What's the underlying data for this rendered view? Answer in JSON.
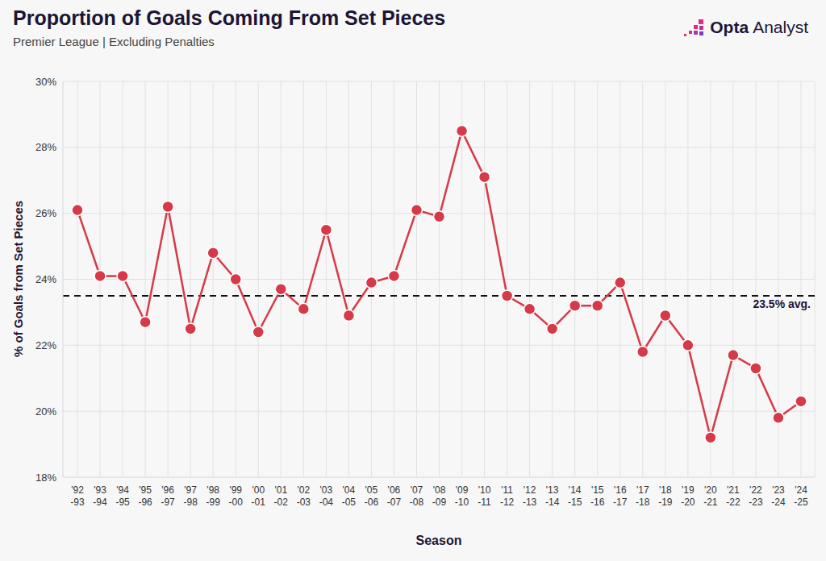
{
  "chart_data": {
    "type": "line",
    "title": "Proportion of Goals Coming From Set Pieces",
    "subtitle": "Premier League | Excluding Penalties",
    "source": "Opta Analyst",
    "x_label": "Season",
    "y_label": "% of Goals from Set Pieces",
    "categories": [
      "'92-93",
      "'93-94",
      "'94-95",
      "'95-96",
      "'96-97",
      "'97-98",
      "'98-99",
      "'99-00",
      "'00-01",
      "'01-02",
      "'02-03",
      "'03-04",
      "'04-05",
      "'05-06",
      "'06-07",
      "'07-08",
      "'08-09",
      "'09-10",
      "'10-11",
      "'11-12",
      "'12-13",
      "'13-14",
      "'14-15",
      "'15-16",
      "'16-17",
      "'17-18",
      "'18-19",
      "'19-20",
      "'20-21",
      "'21-22",
      "'22-23",
      "'23-24",
      "'24-25"
    ],
    "values": [
      26.1,
      24.1,
      24.1,
      22.7,
      26.2,
      22.5,
      24.8,
      24.0,
      22.4,
      23.7,
      23.1,
      25.5,
      22.9,
      23.9,
      24.1,
      26.1,
      25.9,
      28.5,
      27.1,
      23.5,
      23.1,
      22.5,
      23.2,
      23.2,
      23.9,
      21.8,
      22.9,
      22.0,
      19.2,
      21.7,
      21.3,
      19.8,
      20.3
    ],
    "color": "#d63a48",
    "marker": "circle",
    "ylim": [
      18,
      30
    ],
    "yticks": [
      {
        "value": 18,
        "label": "18%"
      },
      {
        "value": 20,
        "label": "20%"
      },
      {
        "value": 22,
        "label": "22%"
      },
      {
        "value": 24,
        "label": "24%"
      },
      {
        "value": 26,
        "label": "26%"
      },
      {
        "value": 28,
        "label": "28%"
      },
      {
        "value": 30,
        "label": "30%"
      }
    ],
    "grid": true,
    "annotations": [
      {
        "text": "23.5% avg.",
        "y": 23.5
      }
    ]
  }
}
